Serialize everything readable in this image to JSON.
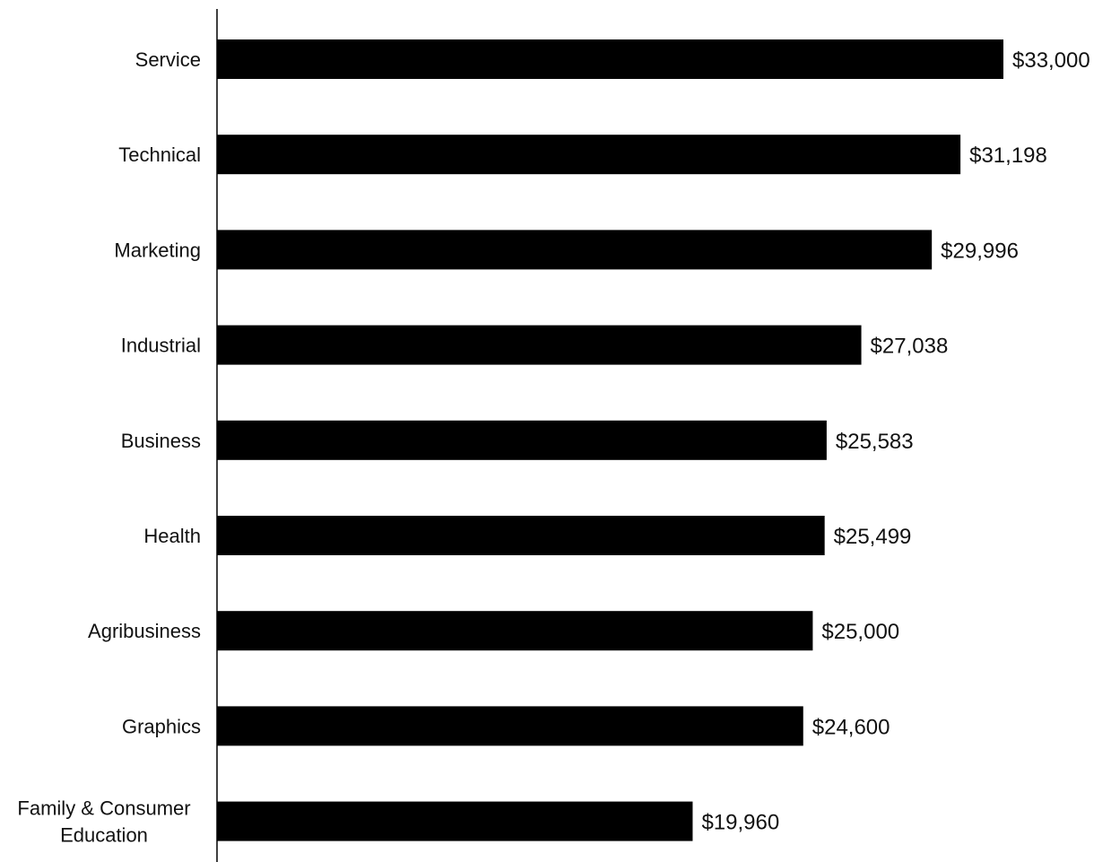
{
  "chart_data": {
    "type": "bar",
    "orientation": "horizontal",
    "title": "",
    "xlabel": "",
    "ylabel": "",
    "categories": [
      "Service",
      "Technical",
      "Marketing",
      "Industrial",
      "Business",
      "Health",
      "Agribusiness",
      "Graphics",
      "Family & Consumer Education"
    ],
    "values": [
      33000,
      31198,
      29996,
      27038,
      25583,
      25499,
      25000,
      24600,
      19960
    ],
    "value_labels": [
      "$33,000",
      "$31,198",
      "$29,996",
      "$27,038",
      "$25,583",
      "$25,499",
      "$25,000",
      "$24,600",
      "$19,960"
    ],
    "xlim": [
      0,
      33000
    ],
    "grid": false,
    "legend": "none",
    "bar_color": "#000000"
  }
}
